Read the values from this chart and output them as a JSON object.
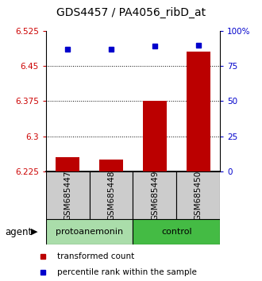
{
  "title": "GDS4457 / PA4056_ribD_at",
  "samples": [
    "GSM685447",
    "GSM685448",
    "GSM685449",
    "GSM685450"
  ],
  "bar_values": [
    6.255,
    6.25,
    6.375,
    6.48
  ],
  "percentile_values": [
    87,
    87,
    89,
    90
  ],
  "ylim_left": [
    6.225,
    6.525
  ],
  "ylim_right": [
    0,
    100
  ],
  "yticks_left": [
    6.225,
    6.3,
    6.375,
    6.45,
    6.525
  ],
  "yticks_right": [
    0,
    25,
    50,
    75,
    100
  ],
  "ytick_labels_left": [
    "6.225",
    "6.3",
    "6.375",
    "6.45",
    "6.525"
  ],
  "ytick_labels_right": [
    "0",
    "25",
    "50",
    "75",
    "100%"
  ],
  "bar_color": "#bb0000",
  "dot_color": "#0000cc",
  "bar_bottom": 6.225,
  "groups": [
    {
      "label": "protoanemonin",
      "indices": [
        0,
        1
      ],
      "color": "#aaddaa"
    },
    {
      "label": "control",
      "indices": [
        2,
        3
      ],
      "color": "#44bb44"
    }
  ],
  "agent_label": "agent",
  "legend_items": [
    {
      "label": "transformed count",
      "color": "#bb0000"
    },
    {
      "label": "percentile rank within the sample",
      "color": "#0000cc"
    }
  ],
  "grid_yticks": [
    6.3,
    6.375,
    6.45
  ],
  "background_color": "#ffffff",
  "sample_box_color": "#cccccc",
  "title_fontsize": 10,
  "tick_fontsize": 7.5,
  "legend_fontsize": 7.5
}
